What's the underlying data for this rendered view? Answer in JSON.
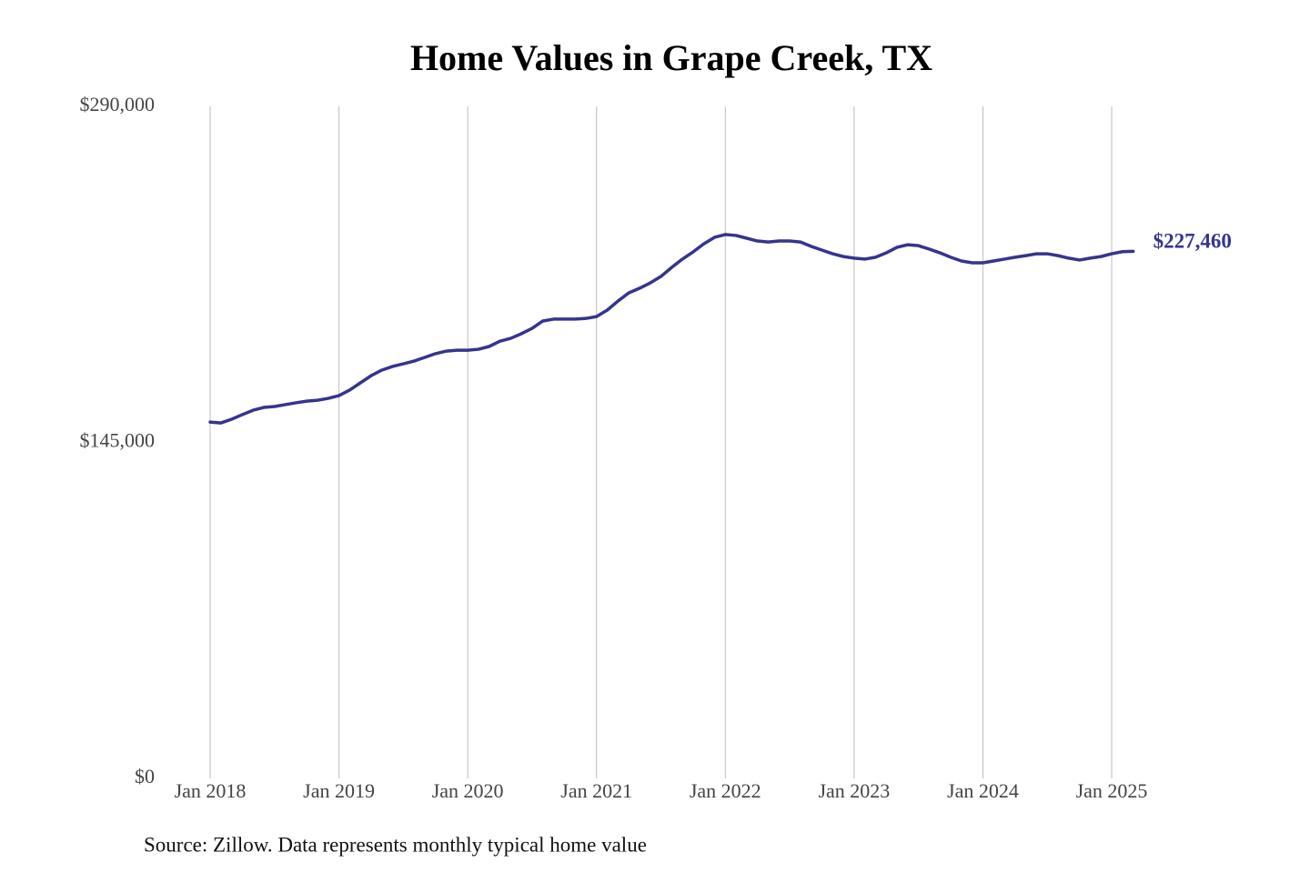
{
  "chart_data": {
    "type": "line",
    "title": "Home Values in Grape Creek, TX",
    "source": "Source: Zillow. Data represents monthly typical home value",
    "x": [
      "2018-01",
      "2018-02",
      "2018-03",
      "2018-04",
      "2018-05",
      "2018-06",
      "2018-07",
      "2018-08",
      "2018-09",
      "2018-10",
      "2018-11",
      "2018-12",
      "2019-01",
      "2019-02",
      "2019-03",
      "2019-04",
      "2019-05",
      "2019-06",
      "2019-07",
      "2019-08",
      "2019-09",
      "2019-10",
      "2019-11",
      "2019-12",
      "2020-01",
      "2020-02",
      "2020-03",
      "2020-04",
      "2020-05",
      "2020-06",
      "2020-07",
      "2020-08",
      "2020-09",
      "2020-10",
      "2020-11",
      "2020-12",
      "2021-01",
      "2021-02",
      "2021-03",
      "2021-04",
      "2021-05",
      "2021-06",
      "2021-07",
      "2021-08",
      "2021-09",
      "2021-10",
      "2021-11",
      "2021-12",
      "2022-01",
      "2022-02",
      "2022-03",
      "2022-04",
      "2022-05",
      "2022-06",
      "2022-07",
      "2022-08",
      "2022-09",
      "2022-10",
      "2022-11",
      "2022-12",
      "2023-01",
      "2023-02",
      "2023-03",
      "2023-04",
      "2023-05",
      "2023-06",
      "2023-07",
      "2023-08",
      "2023-09",
      "2023-10",
      "2023-11",
      "2023-12",
      "2024-01",
      "2024-02",
      "2024-03",
      "2024-04",
      "2024-05",
      "2024-06",
      "2024-07",
      "2024-08",
      "2024-09",
      "2024-10",
      "2024-11",
      "2024-12",
      "2025-01",
      "2025-02",
      "2025-03"
    ],
    "series": [
      {
        "name": "Grape Creek, TX",
        "color": "#35348f",
        "values": [
          153800,
          153400,
          155000,
          157000,
          158900,
          160100,
          160500,
          161300,
          162100,
          162800,
          163200,
          164000,
          165200,
          167600,
          170700,
          173800,
          176200,
          177800,
          178900,
          180100,
          181700,
          183300,
          184400,
          184800,
          184800,
          185200,
          186400,
          188700,
          189900,
          191900,
          194200,
          197400,
          198200,
          198200,
          198200,
          198500,
          199300,
          202100,
          206000,
          209500,
          211500,
          213800,
          216600,
          220500,
          224100,
          227200,
          230700,
          233500,
          234700,
          234300,
          233100,
          231900,
          231500,
          231900,
          231900,
          231500,
          229600,
          228000,
          226400,
          225200,
          224500,
          224100,
          224900,
          226800,
          229200,
          230300,
          229900,
          228400,
          226800,
          224900,
          223300,
          222500,
          222500,
          223300,
          224100,
          224900,
          225600,
          226400,
          226400,
          225600,
          224500,
          223700,
          224500,
          225200,
          226400,
          227300,
          227460
        ],
        "value_labels": [
          null,
          null,
          null,
          null,
          null,
          null,
          null,
          null,
          null,
          null,
          null,
          null,
          null,
          null,
          null,
          null,
          null,
          null,
          null,
          null,
          null,
          null,
          null,
          null,
          null,
          null,
          null,
          null,
          null,
          null,
          null,
          null,
          null,
          null,
          null,
          null,
          null,
          null,
          null,
          null,
          null,
          null,
          null,
          null,
          null,
          null,
          null,
          null,
          null,
          null,
          null,
          null,
          null,
          null,
          null,
          null,
          null,
          null,
          null,
          null,
          null,
          null,
          null,
          null,
          null,
          null,
          null,
          null,
          null,
          null,
          null,
          null,
          null,
          null,
          null,
          null,
          null,
          null,
          null,
          null,
          null,
          null,
          null,
          null,
          null,
          null,
          "$227,460"
        ]
      }
    ],
    "xlim": [
      "2018-01",
      "2025-03"
    ],
    "xticks": [
      {
        "value": "2018-01",
        "label": "Jan 2018"
      },
      {
        "value": "2019-01",
        "label": "Jan 2019"
      },
      {
        "value": "2020-01",
        "label": "Jan 2020"
      },
      {
        "value": "2021-01",
        "label": "Jan 2021"
      },
      {
        "value": "2022-01",
        "label": "Jan 2022"
      },
      {
        "value": "2023-01",
        "label": "Jan 2023"
      },
      {
        "value": "2024-01",
        "label": "Jan 2024"
      },
      {
        "value": "2025-01",
        "label": "Jan 2025"
      }
    ],
    "ylim": [
      0,
      290000
    ],
    "yticks": [
      {
        "value": 0,
        "label": "$0"
      },
      {
        "value": 145000,
        "label": "$145,000"
      },
      {
        "value": 290000,
        "label": "$290,000"
      }
    ],
    "grid": "x"
  }
}
